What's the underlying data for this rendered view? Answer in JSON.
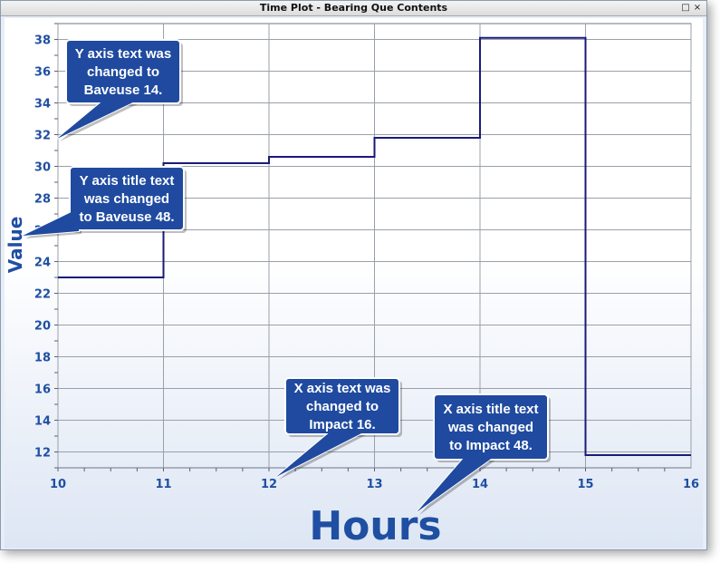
{
  "window": {
    "title": "Time Plot - Bearing Que Contents",
    "restore_glyph": "□",
    "close_glyph": "×"
  },
  "chart_data": {
    "type": "line",
    "step": true,
    "xlabel": "Hours",
    "ylabel": "Value",
    "xlim": [
      10,
      16
    ],
    "ylim": [
      11,
      39
    ],
    "x_ticks": [
      10,
      11,
      12,
      13,
      14,
      15,
      16
    ],
    "y_ticks": [
      12,
      14,
      16,
      18,
      20,
      22,
      24,
      26,
      28,
      30,
      32,
      34,
      36,
      38
    ],
    "grid": true,
    "line_color": "#1a1a7a",
    "series": [
      {
        "x": [
          10,
          11,
          12,
          13,
          14,
          15,
          16
        ],
        "values": [
          23,
          30.2,
          30.6,
          31.8,
          38.1,
          11.8,
          11.8
        ]
      }
    ]
  },
  "annotations": [
    {
      "lines": [
        "Y axis text was",
        "changed to",
        "Baveuse 14."
      ]
    },
    {
      "lines": [
        "Y axis title text",
        "was changed",
        "to Baveuse 48."
      ]
    },
    {
      "lines": [
        "X axis text was",
        "changed to",
        "Impact 16."
      ]
    },
    {
      "lines": [
        "X axis title text",
        "was changed",
        "to Impact 48."
      ]
    }
  ],
  "colors": {
    "axis_text": "#1f4fa3",
    "callout_fill": "#1f4aa0",
    "grid": "#9aa0aa"
  }
}
